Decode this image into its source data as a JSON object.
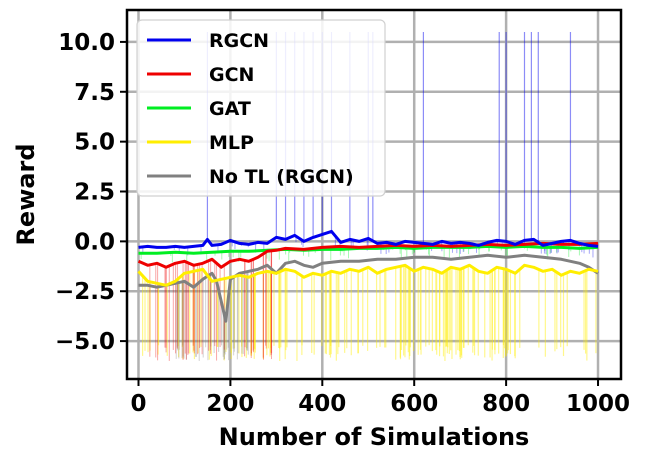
{
  "chart_data": {
    "type": "line",
    "title": "",
    "xlabel": "Number of Simulations",
    "ylabel": "Reward",
    "xlim": [
      -25,
      1050
    ],
    "ylim": [
      -6.9,
      11.6
    ],
    "xticks": [
      0,
      200,
      400,
      600,
      800,
      1000
    ],
    "xtick_labels": [
      "0",
      "200",
      "400",
      "600",
      "800",
      "1000"
    ],
    "yticks": [
      -5.0,
      -2.5,
      0.0,
      2.5,
      5.0,
      7.5,
      10.0
    ],
    "ytick_labels": [
      "−5.0",
      "−2.5",
      "0.0",
      "2.5",
      "5.0",
      "7.5",
      "10.0"
    ],
    "grid": true,
    "legend_position": "top-left",
    "series": [
      {
        "name": "RGCN",
        "color": "#0000ee",
        "x": [
          0,
          20,
          40,
          60,
          80,
          100,
          120,
          140,
          150,
          160,
          180,
          200,
          220,
          240,
          260,
          280,
          300,
          320,
          340,
          360,
          380,
          400,
          420,
          440,
          460,
          480,
          500,
          520,
          540,
          560,
          580,
          600,
          620,
          640,
          660,
          680,
          700,
          720,
          740,
          760,
          780,
          800,
          820,
          840,
          860,
          880,
          900,
          920,
          940,
          960,
          980,
          1000
        ],
        "values": [
          -0.3,
          -0.25,
          -0.3,
          -0.3,
          -0.25,
          -0.3,
          -0.25,
          -0.2,
          0.1,
          -0.2,
          -0.15,
          0.05,
          -0.1,
          -0.15,
          -0.05,
          -0.1,
          0.2,
          0.1,
          0.3,
          0.0,
          0.2,
          0.35,
          0.5,
          -0.05,
          0.1,
          0.0,
          0.15,
          -0.1,
          -0.05,
          -0.15,
          0.0,
          -0.05,
          -0.1,
          -0.15,
          0.0,
          -0.1,
          -0.05,
          -0.1,
          -0.2,
          -0.05,
          0.05,
          0.0,
          -0.15,
          0.05,
          0.1,
          -0.2,
          -0.1,
          0.0,
          0.05,
          -0.1,
          -0.2,
          -0.25
        ],
        "spikes": [
          150,
          300,
          320,
          340,
          360,
          380,
          400,
          420,
          460,
          500,
          510,
          620,
          785,
          800,
          840,
          855,
          870,
          940
        ]
      },
      {
        "name": "GCN",
        "color": "#ee0000",
        "x": [
          0,
          20,
          40,
          60,
          80,
          100,
          120,
          140,
          160,
          180,
          200,
          220,
          240,
          260,
          280,
          300,
          320,
          360,
          400,
          440,
          480,
          520,
          560,
          600,
          640,
          680,
          720,
          760,
          800,
          840,
          880,
          920,
          960,
          1000
        ],
        "values": [
          -1.0,
          -1.2,
          -1.1,
          -1.3,
          -1.1,
          -1.0,
          -1.2,
          -1.1,
          -0.9,
          -1.3,
          -1.0,
          -0.9,
          -1.0,
          -0.8,
          -0.5,
          -0.45,
          -0.35,
          -0.4,
          -0.3,
          -0.25,
          -0.3,
          -0.25,
          -0.2,
          -0.25,
          -0.2,
          -0.25,
          -0.2,
          -0.15,
          -0.2,
          -0.15,
          -0.1,
          -0.15,
          -0.15,
          -0.1
        ]
      },
      {
        "name": "GAT",
        "color": "#00ee22",
        "x": [
          0,
          40,
          80,
          120,
          160,
          200,
          240,
          280,
          320,
          360,
          400,
          440,
          480,
          520,
          560,
          600,
          640,
          680,
          720,
          760,
          800,
          840,
          880,
          920,
          960,
          1000
        ],
        "values": [
          -0.6,
          -0.6,
          -0.55,
          -0.6,
          -0.55,
          -0.5,
          -0.5,
          -0.45,
          -0.4,
          -0.45,
          -0.4,
          -0.4,
          -0.35,
          -0.35,
          -0.3,
          -0.35,
          -0.3,
          -0.3,
          -0.3,
          -0.25,
          -0.3,
          -0.25,
          -0.3,
          -0.3,
          -0.35,
          -0.3
        ]
      },
      {
        "name": "MLP",
        "color": "#ffee00",
        "x": [
          0,
          20,
          40,
          60,
          80,
          100,
          120,
          140,
          160,
          180,
          200,
          220,
          240,
          260,
          280,
          300,
          320,
          340,
          360,
          380,
          400,
          420,
          440,
          460,
          480,
          500,
          520,
          540,
          560,
          580,
          600,
          620,
          640,
          660,
          680,
          700,
          720,
          740,
          760,
          780,
          800,
          820,
          840,
          860,
          880,
          900,
          920,
          940,
          960,
          980,
          1000
        ],
        "values": [
          -1.5,
          -2.0,
          -2.1,
          -2.2,
          -2.0,
          -1.6,
          -1.5,
          -1.4,
          -2.0,
          -1.9,
          -1.8,
          -1.7,
          -1.8,
          -1.6,
          -1.5,
          -1.6,
          -1.4,
          -1.5,
          -1.8,
          -1.6,
          -1.7,
          -1.5,
          -1.6,
          -1.4,
          -1.5,
          -1.3,
          -1.6,
          -1.4,
          -1.3,
          -1.2,
          -1.5,
          -1.3,
          -1.4,
          -1.6,
          -1.3,
          -1.4,
          -1.2,
          -1.5,
          -1.6,
          -1.3,
          -1.4,
          -1.6,
          -1.2,
          -1.3,
          -1.5,
          -1.4,
          -1.7,
          -1.5,
          -1.6,
          -1.4,
          -1.5
        ],
        "floor": -6.0
      },
      {
        "name": "No TL (RGCN)",
        "color": "#808080",
        "x": [
          0,
          20,
          40,
          60,
          80,
          100,
          120,
          140,
          160,
          170,
          180,
          190,
          200,
          220,
          240,
          260,
          280,
          300,
          320,
          340,
          360,
          380,
          400,
          440,
          480,
          520,
          560,
          600,
          640,
          680,
          720,
          760,
          800,
          840,
          880,
          920,
          960,
          980,
          1000
        ],
        "values": [
          -2.2,
          -2.2,
          -2.3,
          -2.2,
          -2.1,
          -2.0,
          -2.3,
          -1.9,
          -1.6,
          -2.0,
          -3.0,
          -4.0,
          -1.9,
          -1.6,
          -1.5,
          -1.4,
          -1.2,
          -1.6,
          -1.1,
          -1.0,
          -1.2,
          -1.3,
          -1.1,
          -1.0,
          -1.0,
          -0.9,
          -0.9,
          -0.8,
          -0.8,
          -0.9,
          -0.8,
          -0.7,
          -0.8,
          -0.7,
          -0.8,
          -0.9,
          -1.1,
          -1.3,
          -1.6
        ]
      }
    ]
  }
}
